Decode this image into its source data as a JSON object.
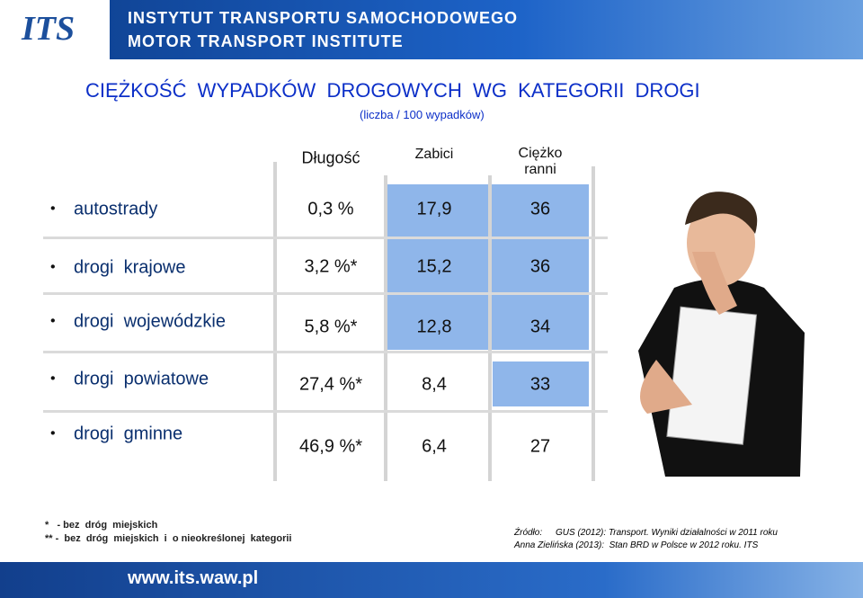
{
  "header": {
    "logo": "ITS",
    "line1": "INSTYTUT TRANSPORTU SAMOCHODOWEGO",
    "line2": "MOTOR TRANSPORT INSTITUTE"
  },
  "title": "CIĘŻKOŚĆ  WYPADKÓW  DROGOWYCH  WG  KATEGORII  DROGI",
  "subtitle": "(liczba / 100 wypadków)",
  "table": {
    "columns": [
      "Długość",
      "Zabici",
      "Ciężko ranni"
    ],
    "rows": [
      [
        "autostrady",
        "0,3 %",
        "17,9",
        "36"
      ],
      [
        "drogi  krajowe",
        "3,2 %*",
        "15,2",
        "36"
      ],
      [
        "drogi  wojewódzkie",
        "5,8 %*",
        "12,8",
        "34"
      ],
      [
        "drogi  powiatowe",
        "27,4 %*",
        "8,4",
        "33"
      ],
      [
        "drogi  gminne",
        "46,9 %*",
        "6,4",
        "27"
      ]
    ]
  },
  "footnotes": [
    "*   - bez  dróg  miejskich",
    "** -  bez  dróg  miejskich  i  o nieokreślonej  kategorii"
  ],
  "sources": {
    "label": "Źródło:",
    "items": [
      "GUS (2012): Transport. Wyniki działalności w 2011 roku",
      "Anna Zielińska (2013):  Stan BRD w Polsce w 2012 roku. ITS"
    ]
  },
  "footer": "www.its.waw.pl"
}
